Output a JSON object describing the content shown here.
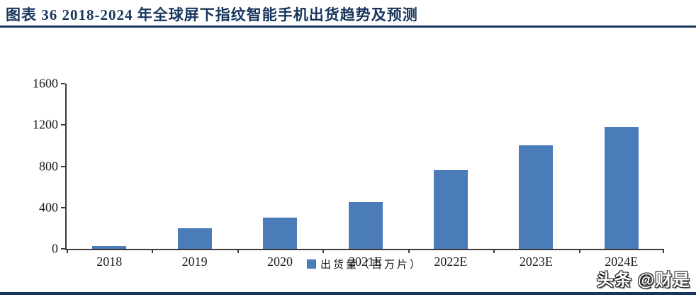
{
  "header": {
    "title": "图表 36   2018-2024 年全球屏下指纹智能手机出货趋势及预测"
  },
  "chart_data": {
    "type": "bar",
    "title": "2018-2024 年全球屏下指纹智能手机出货趋势及预测",
    "categories": [
      "2018",
      "2019",
      "2020",
      "2021E",
      "2022E",
      "2023E",
      "2024E"
    ],
    "values": [
      25,
      200,
      300,
      450,
      760,
      1000,
      1180
    ],
    "series_name": "出货量（百万片）",
    "xlabel": "",
    "ylabel": "",
    "ylim": [
      0,
      1600
    ],
    "yticks": [
      0,
      400,
      800,
      1200,
      1600
    ],
    "grid": false,
    "legend_position": "bottom",
    "bar_color": "#4A7CBA"
  },
  "legend": {
    "label": "出货量（百万片）"
  },
  "watermark": {
    "text": "头条 @财是"
  },
  "colors": {
    "accent_navy": "#17365D",
    "bar_blue": "#4A7CBA",
    "axis": "#3b3b3b"
  }
}
